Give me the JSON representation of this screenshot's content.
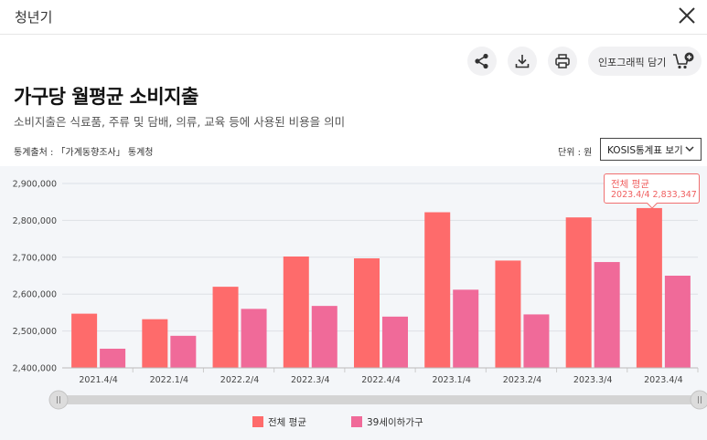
{
  "header": {
    "title": "청년기"
  },
  "toolbar": {
    "infographic_label": "인포그래픽 담기"
  },
  "page": {
    "title": "가구당 월평균 소비지출",
    "subtitle": "소비지출은 식료품, 주류 및 담배, 의류, 교육 등에 사용된 비용을 의미",
    "source": "통계출처 : 「가계동향조사」 통계청",
    "unit": "단위 : 원",
    "kosis_button": "KOSIS통계표 보기"
  },
  "icons": {
    "share": "share-icon",
    "download": "download-icon",
    "print": "print-icon",
    "cart": "cart-plus-icon",
    "close": "close-icon",
    "chevron": "chevron-down-icon"
  },
  "colors": {
    "series1": "#fe6b6b",
    "series2": "#f06a99",
    "accent": "#f06060"
  },
  "tooltip": {
    "name": "전체 평균",
    "value_text": "2023.4/4  2,833,347"
  },
  "chart_data": {
    "type": "bar",
    "categories": [
      "2021.4/4",
      "2022.1/4",
      "2022.2/4",
      "2022.3/4",
      "2022.4/4",
      "2023.1/4",
      "2023.2/4",
      "2023.3/4",
      "2023.4/4"
    ],
    "series": [
      {
        "name": "전체 평균",
        "values": [
          2547000,
          2532000,
          2620000,
          2702000,
          2697000,
          2822000,
          2691000,
          2808000,
          2833347
        ]
      },
      {
        "name": "39세이하가구",
        "values": [
          2452000,
          2487000,
          2560000,
          2568000,
          2539000,
          2612000,
          2545000,
          2687000,
          2650000
        ]
      }
    ],
    "y_ticks": [
      "2,400,000",
      "2,500,000",
      "2,600,000",
      "2,700,000",
      "2,800,000",
      "2,900,000"
    ],
    "ylim": [
      2400000,
      2900000
    ],
    "grid": true,
    "legend_position": "bottom",
    "highlighted_category": "2023.4/4"
  }
}
